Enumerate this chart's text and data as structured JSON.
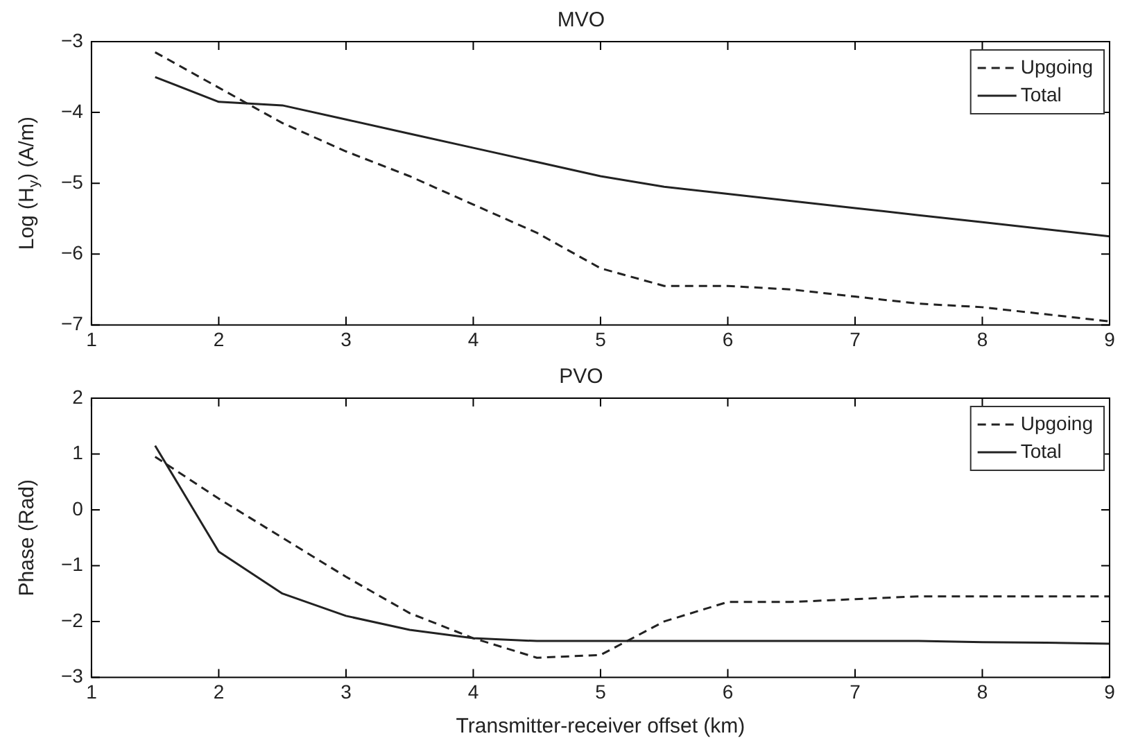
{
  "chart_data": [
    {
      "type": "line",
      "title": "MVO",
      "ylabel": "Log (H$_{y}$) (A/m)",
      "x": [
        1.5,
        2,
        2.5,
        3,
        3.5,
        4,
        4.5,
        5,
        5.5,
        6,
        6.5,
        7,
        7.5,
        8,
        8.5,
        9
      ],
      "xlim": [
        1,
        9
      ],
      "xticks": [
        1,
        2,
        3,
        4,
        5,
        6,
        7,
        8,
        9
      ],
      "ylim": [
        -7,
        -3
      ],
      "yticks": [
        -7,
        -6,
        -5,
        -4,
        -3
      ],
      "grid": false,
      "legend": "top right",
      "marker": "none",
      "series": [
        {
          "name": "Upgoing",
          "color": "#222222",
          "line_style": "dashed",
          "values": [
            -3.15,
            -3.65,
            -4.15,
            -4.55,
            -4.9,
            -5.3,
            -5.7,
            -6.2,
            -6.45,
            -6.45,
            -6.5,
            -6.6,
            -6.7,
            -6.75,
            -6.85,
            -6.95
          ]
        },
        {
          "name": "Total",
          "color": "#222222",
          "line_style": "solid",
          "values": [
            -3.5,
            -3.85,
            -3.9,
            -4.1,
            -4.3,
            -4.5,
            -4.7,
            -4.9,
            -5.05,
            -5.15,
            -5.25,
            -5.35,
            -5.45,
            -5.55,
            -5.65,
            -5.75
          ]
        }
      ]
    },
    {
      "type": "line",
      "title": "PVO",
      "xlabel": "Transmitter-receiver offset (km)",
      "ylabel": "Phase (Rad)",
      "x": [
        1.5,
        2,
        2.5,
        3,
        3.5,
        4,
        4.5,
        5,
        5.5,
        6,
        6.5,
        7,
        7.5,
        8,
        8.5,
        9
      ],
      "xlim": [
        1,
        9
      ],
      "xticks": [
        1,
        2,
        3,
        4,
        5,
        6,
        7,
        8,
        9
      ],
      "ylim": [
        -3,
        2
      ],
      "yticks": [
        -3,
        -2,
        -1,
        0,
        1,
        2
      ],
      "grid": false,
      "legend": "top right",
      "marker": "none",
      "series": [
        {
          "name": "Upgoing",
          "color": "#222222",
          "line_style": "dashed",
          "values": [
            0.95,
            0.2,
            -0.5,
            -1.2,
            -1.85,
            -2.3,
            -2.65,
            -2.6,
            -2.0,
            -1.65,
            -1.65,
            -1.6,
            -1.55,
            -1.55,
            -1.55,
            -1.55
          ]
        },
        {
          "name": "Total",
          "color": "#222222",
          "line_style": "solid",
          "values": [
            1.15,
            -0.75,
            -1.5,
            -1.9,
            -2.15,
            -2.3,
            -2.35,
            -2.35,
            -2.35,
            -2.35,
            -2.35,
            -2.35,
            -2.35,
            -2.37,
            -2.38,
            -2.4
          ]
        }
      ]
    }
  ]
}
